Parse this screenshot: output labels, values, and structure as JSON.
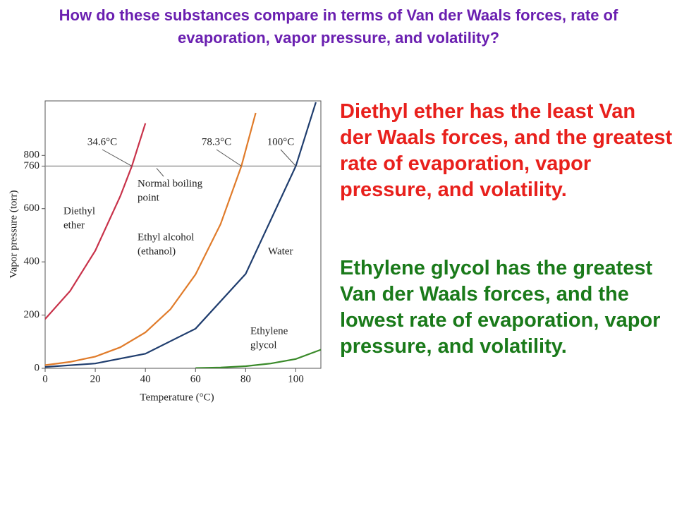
{
  "title": "How do these substances compare in terms of Van der Waals forces, rate of evaporation, vapor pressure, and volatility?",
  "chart_data": {
    "type": "line",
    "x_label": "Temperature (°C)",
    "y_label": "Vapor pressure (torr)",
    "xlim": [
      0,
      110
    ],
    "ylim": [
      0,
      1005
    ],
    "xticks": [
      0,
      20,
      40,
      60,
      80,
      100
    ],
    "yticks": [
      0,
      200,
      400,
      600,
      760,
      800
    ],
    "reference_line": {
      "value": 760,
      "label": [
        "Normal boiling",
        "point"
      ]
    },
    "boiling_points": [
      {
        "x": 34.6,
        "label": "34.6°C"
      },
      {
        "x": 78.3,
        "label": "78.3°C"
      },
      {
        "x": 100,
        "label": "100°C"
      }
    ],
    "series": [
      {
        "label": [
          "Diethyl",
          "ether"
        ],
        "color": "#c8324a",
        "x": [
          0,
          10,
          20,
          30,
          34.6,
          40
        ],
        "values": [
          185,
          291,
          442,
          647,
          760,
          921
        ]
      },
      {
        "label": [
          "Ethyl alcohol",
          "(ethanol)"
        ],
        "color": "#e07b2a",
        "x": [
          0,
          10,
          20,
          30,
          40,
          50,
          60,
          70,
          78.3,
          84
        ],
        "values": [
          12,
          24,
          44,
          79,
          135,
          222,
          353,
          542,
          760,
          960
        ]
      },
      {
        "label": [
          "Water"
        ],
        "color": "#1f3d6e",
        "x": [
          0,
          20,
          40,
          60,
          80,
          100,
          108
        ],
        "values": [
          5,
          18,
          55,
          149,
          355,
          760,
          1000
        ]
      },
      {
        "label": [
          "Ethylene",
          "glycol"
        ],
        "color": "#3a8a2a",
        "x": [
          60,
          70,
          80,
          90,
          100,
          110
        ],
        "values": [
          1,
          3,
          8,
          18,
          35,
          70
        ]
      }
    ]
  },
  "text": {
    "red": "Diethyl ether has the least Van der Waals forces, and the greatest rate of evaporation, vapor pressure, and volatility.",
    "green": "Ethylene glycol has the greatest Van der Waals forces, and the lowest rate of evaporation, vapor pressure, and volatility."
  }
}
